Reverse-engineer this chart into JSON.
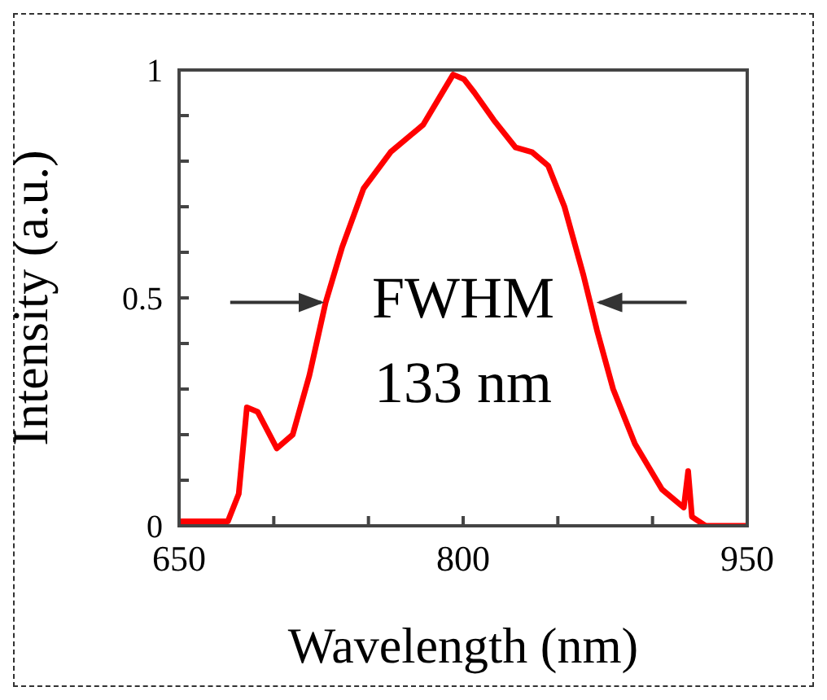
{
  "chart_data": {
    "type": "line",
    "xlabel": "Wavelength (nm)",
    "ylabel": "Intensity (a.u.)",
    "annotations": [
      "FWHM\n133 nm"
    ],
    "x": [
      650,
      675.8,
      681.5,
      685.8,
      691.5,
      701.6,
      710,
      718.8,
      727.4,
      736,
      747.4,
      761.7,
      778.9,
      787.5,
      794.7,
      800.4,
      806,
      816.2,
      827.7,
      836.3,
      844.9,
      853.5,
      863.5,
      870.6,
      879.2,
      890.7,
      905,
      916.5,
      918.8,
      920.8,
      928,
      950
    ],
    "series": [
      {
        "color": "#ff0000",
        "values": [
          0.01,
          0.01,
          0.07,
          0.26,
          0.25,
          0.17,
          0.2,
          0.33,
          0.49,
          0.61,
          0.74,
          0.82,
          0.88,
          0.94,
          0.99,
          0.98,
          0.95,
          0.89,
          0.83,
          0.82,
          0.79,
          0.7,
          0.55,
          0.43,
          0.3,
          0.18,
          0.08,
          0.04,
          0.12,
          0.02,
          0.0,
          0.0
        ]
      }
    ],
    "xlim": [
      650,
      950
    ],
    "xticks": [
      650,
      {
        "value": 700,
        "label": null
      },
      {
        "value": 750,
        "label": null
      },
      800,
      {
        "value": 850,
        "label": null
      },
      {
        "value": 900,
        "label": null
      },
      950
    ],
    "ylim": [
      0,
      1
    ],
    "yticks": [
      0,
      {
        "value": 0.1,
        "label": null
      },
      {
        "value": 0.2,
        "label": null
      },
      {
        "value": 0.3,
        "label": null
      },
      {
        "value": 0.4,
        "label": null
      },
      0.5,
      {
        "value": 0.6,
        "label": null
      },
      {
        "value": 0.7,
        "label": null
      },
      {
        "value": 0.8,
        "label": null
      },
      {
        "value": 0.9,
        "label": null
      },
      1
    ],
    "marker": "none",
    "line_style": "solid"
  }
}
